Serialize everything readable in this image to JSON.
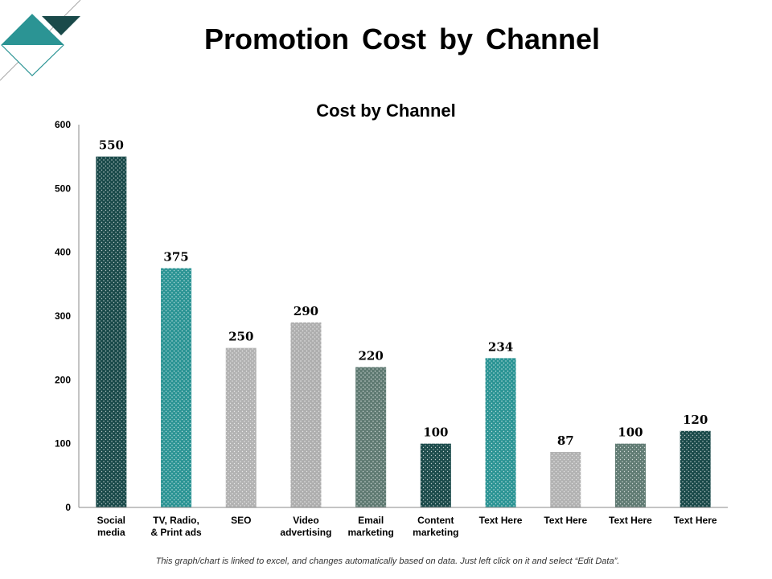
{
  "header": {
    "title": "Promotion Cost by Channel"
  },
  "footer": {
    "note": "This graph/chart is linked to excel, and changes automatically based on data. Just left click on it and select “Edit Data”."
  },
  "colors": {
    "dark_teal": "#1a4a4a",
    "teal": "#2b9494",
    "light_gray": "#b2b2b2",
    "mid_gray": "#aeaeae",
    "slate_green": "#5f7a72"
  },
  "chart_data": {
    "type": "bar",
    "title": "Cost by Channel",
    "categories": [
      [
        "Social",
        "media"
      ],
      [
        "TV, Radio,",
        "& Print ads"
      ],
      [
        "SEO"
      ],
      [
        "Video",
        "advertising"
      ],
      [
        "Email",
        "marketing"
      ],
      [
        "Content",
        "marketing"
      ],
      [
        "Text Here"
      ],
      [
        "Text Here"
      ],
      [
        "Text Here"
      ],
      [
        "Text Here"
      ]
    ],
    "values": [
      550,
      375,
      250,
      290,
      220,
      100,
      234,
      87,
      100,
      120
    ],
    "bar_colors": [
      "#1a4a4a",
      "#2b9494",
      "#b2b2b2",
      "#aeaeae",
      "#5f7a72",
      "#1a4a4a",
      "#2b9494",
      "#b2b2b2",
      "#5f7a72",
      "#1a4a4a"
    ],
    "ylim": [
      0,
      600
    ],
    "yticks": [
      0,
      100,
      200,
      300,
      400,
      500,
      600
    ],
    "grid": false,
    "legend": "none",
    "pattern": "dotted"
  }
}
